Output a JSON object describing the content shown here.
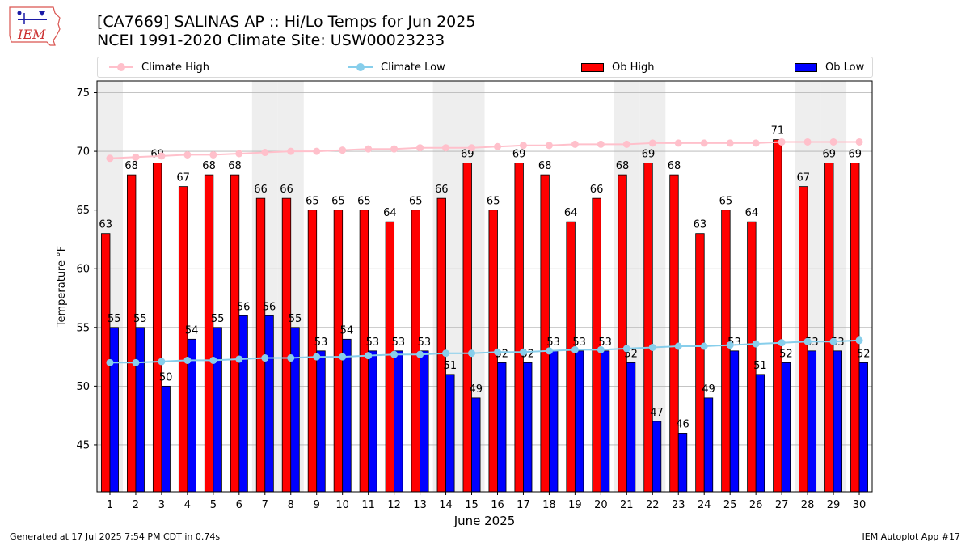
{
  "header": {
    "line1": "[CA7669] SALINAS AP :: Hi/Lo Temps for Jun 2025",
    "line2": "NCEI 1991-2020 Climate Site: USW00023233",
    "logo_text": "IEM"
  },
  "legend": {
    "climate_high": "Climate High",
    "climate_low": "Climate Low",
    "ob_high": "Ob High",
    "ob_low": "Ob Low"
  },
  "footer": {
    "generated": "Generated at 17 Jul 2025 7:54 PM CDT in 0.74s",
    "app": "IEM Autoplot App #17"
  },
  "colors": {
    "ob_high": "#ff0000",
    "ob_low": "#0000ff",
    "climate_high": "#ffc0cb",
    "climate_low": "#87ceeb",
    "weekend_band": "#eeeeee",
    "grid": "#b0b0b0"
  },
  "chart_data": {
    "type": "bar",
    "xlabel": "June 2025",
    "ylabel": "Temperature °F",
    "ylim": [
      41,
      76
    ],
    "yticks": [
      45,
      50,
      55,
      60,
      65,
      70,
      75
    ],
    "grid": "horizontal",
    "legend_position": "top",
    "categories": [
      "1",
      "2",
      "3",
      "4",
      "5",
      "6",
      "7",
      "8",
      "9",
      "10",
      "11",
      "12",
      "13",
      "14",
      "15",
      "16",
      "17",
      "18",
      "19",
      "20",
      "21",
      "22",
      "23",
      "24",
      "25",
      "26",
      "27",
      "28",
      "29",
      "30"
    ],
    "shaded_days": [
      1,
      7,
      8,
      14,
      15,
      21,
      22,
      28,
      29
    ],
    "series": [
      {
        "name": "Ob High",
        "kind": "bar",
        "values": [
          63,
          68,
          69,
          67,
          68,
          68,
          66,
          66,
          65,
          65,
          65,
          64,
          65,
          66,
          69,
          65,
          69,
          68,
          64,
          66,
          68,
          69,
          68,
          63,
          65,
          64,
          71,
          67,
          69,
          69
        ]
      },
      {
        "name": "Ob Low",
        "kind": "bar",
        "values": [
          55,
          55,
          50,
          54,
          55,
          56,
          56,
          55,
          53,
          54,
          53,
          53,
          53,
          51,
          49,
          52,
          52,
          53,
          53,
          53,
          52,
          47,
          46,
          49,
          53,
          51,
          52,
          53,
          53,
          52
        ]
      },
      {
        "name": "Climate High",
        "kind": "line",
        "values": [
          69.4,
          69.5,
          69.6,
          69.7,
          69.7,
          69.8,
          69.9,
          70.0,
          70.0,
          70.1,
          70.2,
          70.2,
          70.3,
          70.3,
          70.3,
          70.4,
          70.5,
          70.5,
          70.6,
          70.6,
          70.6,
          70.7,
          70.7,
          70.7,
          70.7,
          70.7,
          70.8,
          70.8,
          70.8,
          70.8
        ]
      },
      {
        "name": "Climate Low",
        "kind": "line",
        "values": [
          52.0,
          52.0,
          52.1,
          52.2,
          52.2,
          52.3,
          52.4,
          52.4,
          52.5,
          52.5,
          52.6,
          52.7,
          52.7,
          52.8,
          52.8,
          52.9,
          52.9,
          53.0,
          53.1,
          53.1,
          53.2,
          53.3,
          53.4,
          53.4,
          53.5,
          53.6,
          53.7,
          53.8,
          53.8,
          53.9
        ]
      }
    ]
  }
}
